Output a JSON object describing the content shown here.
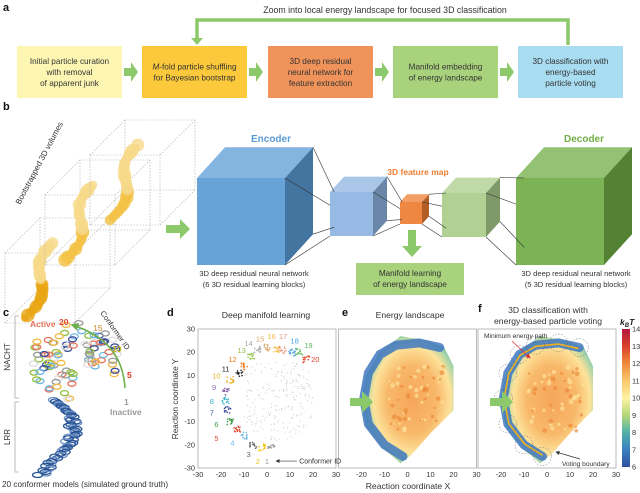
{
  "panel_labels": {
    "a": "a",
    "b": "b",
    "c": "c",
    "d": "d",
    "e": "e",
    "f": "f"
  },
  "panel_a": {
    "feedback_label": "Zoom into local energy landscape for focused 3D classification",
    "boxes": [
      {
        "lines": [
          "Initial particle curation",
          "with removal",
          "of apparent junk"
        ],
        "color": "#fdf6b2"
      },
      {
        "lines": [
          "M-fold particle shuffling",
          "for Bayesian bootstrap"
        ],
        "color": "#fbc93b"
      },
      {
        "lines": [
          "3D deep residual",
          "neural network for",
          "feature extraction"
        ],
        "color": "#f0935a"
      },
      {
        "lines": [
          "Manifold embedding",
          "of energy landscape"
        ],
        "color": "#a9d27c"
      },
      {
        "lines": [
          "3D classification with",
          "energy-based",
          "particle voting"
        ],
        "color": "#a8dcf0"
      }
    ],
    "arrow_color": "#8cc96a"
  },
  "panel_b": {
    "volumes_label": "Bootstrapped 3D volumes",
    "encoder_label": "Encoder",
    "decoder_label": "Decoder",
    "feature_map_label": "3D feature map",
    "encoder_caption": [
      "3D deep residual neural network",
      "(6 3D residual learning blocks)"
    ],
    "decoder_caption": [
      "3D deep residual neural network",
      "(5 3D residual learning blocks)"
    ],
    "manifold_box": [
      "Manifold learning",
      "of energy landscape"
    ],
    "colors": {
      "encoder": "#5b9bd5",
      "decoder": "#70ad47",
      "feature_map": "#ed7d31"
    }
  },
  "panel_c": {
    "nacht_label": "NACHT",
    "lrr_label": "LRR",
    "active_label": "Active",
    "inactive_label": "Inactive",
    "conformer_id_label": "Conformer ID",
    "ids": [
      "20",
      "15",
      "10",
      "5",
      "1"
    ],
    "caption": "20 conformer models (simulated ground truth)"
  },
  "panel_d": {
    "title": "Deep manifold learning",
    "ylabel": "Reaction coordinate Y",
    "conformer_note": "Conformer ID"
  },
  "panel_e": {
    "title": "Energy landscape"
  },
  "panel_f": {
    "title": [
      "3D classification with",
      "energy-based particle voting"
    ],
    "min_path_label": "Minimum energy path",
    "voting_label": "Voting boundary"
  },
  "shared_xlabel": "Reaction coordinate X",
  "colorbar": {
    "label": "kBT",
    "ticks": [
      "6",
      "7",
      "8",
      "9",
      "10",
      "11",
      "12",
      "13",
      "14"
    ],
    "range": [
      6,
      14
    ],
    "colors": [
      "#2f4f9e",
      "#3b7fc1",
      "#4fb0a8",
      "#b5d879",
      "#fdf2a4",
      "#fbc66b",
      "#f08a3c",
      "#d8402c",
      "#b0183f"
    ]
  },
  "chart_data": [
    {
      "type": "scatter",
      "title": "Deep manifold learning",
      "xlabel": "Reaction coordinate X",
      "ylabel": "Reaction coordinate Y",
      "xlim": [
        -30,
        30
      ],
      "ylim": [
        -30,
        30
      ],
      "xticks": [
        "-30",
        "-20",
        "-10",
        "0",
        "10",
        "20",
        "30"
      ],
      "yticks": [
        "30",
        "20",
        "10",
        "0",
        "-10",
        "-20",
        "-30"
      ],
      "clusters": [
        {
          "id": "1",
          "x": 2,
          "y": -21,
          "lx": 0,
          "ly": -27,
          "color": "#999999"
        },
        {
          "id": "2",
          "x": -2,
          "y": -21,
          "lx": -4,
          "ly": -27,
          "color": "#f5c518"
        },
        {
          "id": "3",
          "x": -6,
          "y": -20,
          "lx": -8,
          "ly": -24,
          "color": "#666666"
        },
        {
          "id": "4",
          "x": -10,
          "y": -16,
          "lx": -15,
          "ly": -19,
          "color": "#6fb6e6"
        },
        {
          "id": "5",
          "x": -13,
          "y": -13,
          "lx": -22,
          "ly": -17,
          "color": "#e0452c"
        },
        {
          "id": "6",
          "x": -16,
          "y": -10,
          "lx": -22,
          "ly": -11,
          "color": "#3e9a4a"
        },
        {
          "id": "7",
          "x": -17,
          "y": -5,
          "lx": -24,
          "ly": -6,
          "color": "#3b4f9b"
        },
        {
          "id": "8",
          "x": -18,
          "y": -1,
          "lx": -24,
          "ly": -1,
          "color": "#35b5c8"
        },
        {
          "id": "9",
          "x": -18,
          "y": 3,
          "lx": -23,
          "ly": 5,
          "color": "#8a6aa8"
        },
        {
          "id": "10",
          "x": -16,
          "y": 8,
          "lx": -22,
          "ly": 10,
          "color": "#e4b21f"
        },
        {
          "id": "11",
          "x": -12,
          "y": 11,
          "lx": -18,
          "ly": 13,
          "color": "#222222"
        },
        {
          "id": "12",
          "x": -10,
          "y": 14,
          "lx": -15,
          "ly": 17,
          "color": "#ee7a1c"
        },
        {
          "id": "13",
          "x": -7,
          "y": 18,
          "lx": -11,
          "ly": 21,
          "color": "#8fbf3c"
        },
        {
          "id": "14",
          "x": -4,
          "y": 21,
          "lx": -8,
          "ly": 24,
          "color": "#aaaaaa"
        },
        {
          "id": "15",
          "x": 0,
          "y": 22,
          "lx": -3,
          "ly": 26,
          "color": "#d8a870"
        },
        {
          "id": "16",
          "x": 4,
          "y": 21,
          "lx": 2,
          "ly": 27,
          "color": "#f4b942"
        },
        {
          "id": "17",
          "x": 7,
          "y": 21,
          "lx": 7,
          "ly": 27,
          "color": "#ee9a80"
        },
        {
          "id": "18",
          "x": 11,
          "y": 20,
          "lx": 12,
          "ly": 25,
          "color": "#4aa3df"
        },
        {
          "id": "19",
          "x": 14,
          "y": 20,
          "lx": 18,
          "ly": 23,
          "color": "#5cb85c"
        },
        {
          "id": "20",
          "x": 17,
          "y": 17,
          "lx": 21,
          "ly": 17,
          "color": "#e0452c"
        }
      ]
    },
    {
      "type": "heatmap",
      "title": "Energy landscape",
      "xlabel": "Reaction coordinate X",
      "xlim": [
        -30,
        30
      ],
      "ylim": [
        -30,
        30
      ],
      "zlabel": "kBT",
      "zlim": [
        6,
        14
      ]
    },
    {
      "type": "heatmap",
      "title": "3D classification with energy-based particle voting",
      "xlabel": "Reaction coordinate X",
      "xlim": [
        -30,
        30
      ],
      "ylim": [
        -30,
        30
      ],
      "zlabel": "kBT",
      "zlim": [
        6,
        14
      ]
    }
  ]
}
